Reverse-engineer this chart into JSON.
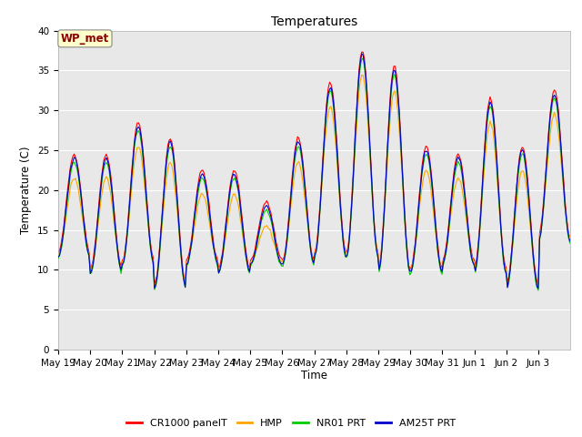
{
  "title": "Temperatures",
  "xlabel": "Time",
  "ylabel": "Temperature (C)",
  "annotation": "WP_met",
  "annotation_color": "#8B0000",
  "annotation_bg": "#FFFFCC",
  "ylim": [
    0,
    40
  ],
  "yticks": [
    0,
    5,
    10,
    15,
    20,
    25,
    30,
    35,
    40
  ],
  "series_colors": {
    "CR1000 panelT": "#FF0000",
    "HMP": "#FFA500",
    "NR01 PRT": "#00CC00",
    "AM25T PRT": "#0000CC"
  },
  "bg_color": "#E8E8E8",
  "grid_color": "#FFFFFF",
  "xtick_labels": [
    "May 19",
    "May 20",
    "May 21",
    "May 22",
    "May 23",
    "May 24",
    "May 25",
    "May 26",
    "May 27",
    "May 28",
    "May 29",
    "May 30",
    "May 31",
    "Jun 1",
    "Jun 2",
    "Jun 3"
  ],
  "peaks_base": [
    24,
    24,
    28,
    26,
    22,
    22,
    18,
    26,
    33,
    37,
    35,
    25,
    24,
    31,
    25,
    32
  ],
  "troughs_base": [
    12,
    10,
    11,
    8,
    11,
    10,
    11,
    11,
    12,
    12,
    10,
    10,
    11,
    10,
    8,
    14
  ],
  "legend_labels": [
    "CR1000 panelT",
    "HMP",
    "NR01 PRT",
    "AM25T PRT"
  ]
}
